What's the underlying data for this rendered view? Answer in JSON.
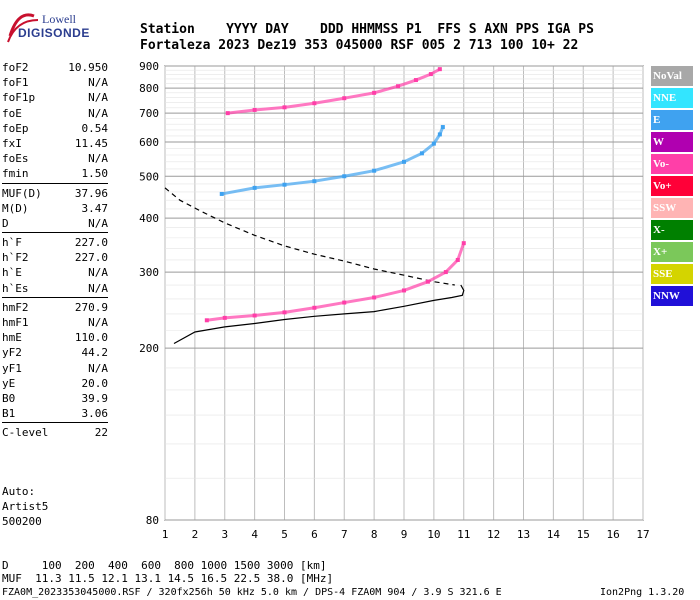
{
  "logo": {
    "line1": "Lowell",
    "line2": "DIGISONDE"
  },
  "header": {
    "row1": "Station    YYYY DAY    DDD HHMMSS P1  FFS S AXN PPS IGA PS",
    "row2": "Fortaleza 2023 Dez19 353 045000 RSF 005 2 713 100 10+ 22"
  },
  "params": {
    "group1": [
      {
        "k": "foF2",
        "v": "10.950"
      },
      {
        "k": "foF1",
        "v": "N/A"
      },
      {
        "k": "foF1p",
        "v": "N/A"
      },
      {
        "k": "foE",
        "v": "N/A"
      },
      {
        "k": "foEp",
        "v": "0.54"
      },
      {
        "k": "fxI",
        "v": "11.45"
      },
      {
        "k": "foEs",
        "v": "N/A"
      },
      {
        "k": "fmin",
        "v": "1.50"
      }
    ],
    "group2": [
      {
        "k": "MUF(D)",
        "v": "37.96"
      },
      {
        "k": "M(D)",
        "v": "3.47"
      },
      {
        "k": "D",
        "v": "N/A"
      }
    ],
    "group3": [
      {
        "k": "h`F",
        "v": "227.0"
      },
      {
        "k": "h`F2",
        "v": "227.0"
      },
      {
        "k": "h`E",
        "v": "N/A"
      },
      {
        "k": "h`Es",
        "v": "N/A"
      }
    ],
    "group4": [
      {
        "k": "hmF2",
        "v": "270.9"
      },
      {
        "k": "hmF1",
        "v": "N/A"
      },
      {
        "k": "hmE",
        "v": "110.0"
      },
      {
        "k": "yF2",
        "v": "44.2"
      },
      {
        "k": "yF1",
        "v": "N/A"
      },
      {
        "k": "yE",
        "v": "20.0"
      },
      {
        "k": "B0",
        "v": "39.9"
      },
      {
        "k": "B1",
        "v": "3.06"
      }
    ],
    "group5": [
      {
        "k": "C-level",
        "v": "22"
      }
    ]
  },
  "auto": {
    "line1": "Auto:",
    "line2": "Artist5",
    "line3": "500200"
  },
  "legend": [
    {
      "label": "NoVal",
      "color": "#a8a8a8"
    },
    {
      "label": "NNE",
      "color": "#33e5ff"
    },
    {
      "label": "E",
      "color": "#3fa2f0"
    },
    {
      "label": "W",
      "color": "#b000b0"
    },
    {
      "label": "Vo-",
      "color": "#ff3fa8"
    },
    {
      "label": "Vo+",
      "color": "#ff0038"
    },
    {
      "label": "SSW",
      "color": "#ffb4b4"
    },
    {
      "label": "X-",
      "color": "#008000"
    },
    {
      "label": "X+",
      "color": "#7bc85a"
    },
    {
      "label": "SSE",
      "color": "#d4d400"
    },
    {
      "label": "NNW",
      "color": "#2010d8"
    }
  ],
  "chart_data": {
    "type": "scatter",
    "title": "",
    "xlabel": "",
    "ylabel": "",
    "xlim": [
      1,
      17
    ],
    "ylim": [
      80,
      900
    ],
    "yscale": "log",
    "x_ticks": [
      "1",
      "2",
      "3",
      "4",
      "5",
      "6",
      "7",
      "8",
      "9",
      "10",
      "11",
      "12",
      "13",
      "14",
      "15",
      "16",
      "17"
    ],
    "y_ticks": [
      "80",
      "200",
      "300",
      "400",
      "500",
      "600",
      "700",
      "800",
      "900"
    ],
    "grid": true,
    "traces": [
      {
        "name": "F-trace-1",
        "color": "#ff3fa8",
        "points": [
          [
            2.4,
            232
          ],
          [
            3,
            235
          ],
          [
            4,
            238
          ],
          [
            5,
            242
          ],
          [
            6,
            248
          ],
          [
            7,
            255
          ],
          [
            8,
            262
          ],
          [
            9,
            272
          ],
          [
            9.8,
            285
          ],
          [
            10.4,
            300
          ],
          [
            10.8,
            320
          ],
          [
            11,
            350
          ]
        ]
      },
      {
        "name": "F-trace-2",
        "color": "#3fa2f0",
        "points": [
          [
            2.9,
            455
          ],
          [
            4,
            470
          ],
          [
            5,
            478
          ],
          [
            6,
            487
          ],
          [
            7,
            500
          ],
          [
            8,
            515
          ],
          [
            9,
            540
          ],
          [
            9.6,
            565
          ],
          [
            10,
            595
          ],
          [
            10.2,
            625
          ],
          [
            10.3,
            650
          ]
        ]
      },
      {
        "name": "F-trace-3",
        "color": "#ff3fa8",
        "points": [
          [
            3.1,
            700
          ],
          [
            4,
            712
          ],
          [
            5,
            722
          ],
          [
            6,
            738
          ],
          [
            7,
            758
          ],
          [
            8,
            780
          ],
          [
            8.8,
            808
          ],
          [
            9.4,
            835
          ],
          [
            9.9,
            862
          ],
          [
            10.2,
            885
          ]
        ]
      }
    ],
    "curves": [
      {
        "name": "profile",
        "style": "solid",
        "points": [
          [
            1.3,
            205
          ],
          [
            2,
            218
          ],
          [
            3,
            224
          ],
          [
            4,
            228
          ],
          [
            5,
            233
          ],
          [
            6,
            237
          ],
          [
            7,
            240
          ],
          [
            8,
            243
          ],
          [
            9,
            250
          ],
          [
            10,
            258
          ],
          [
            10.6,
            262
          ],
          [
            10.95,
            265
          ],
          [
            11,
            272
          ],
          [
            10.9,
            280
          ]
        ]
      },
      {
        "name": "dashed",
        "style": "dashed",
        "points": [
          [
            1,
            470
          ],
          [
            1.5,
            440
          ],
          [
            2.2,
            415
          ],
          [
            3,
            390
          ],
          [
            4,
            365
          ],
          [
            5,
            345
          ],
          [
            6,
            330
          ],
          [
            7,
            318
          ],
          [
            8,
            305
          ],
          [
            9,
            295
          ],
          [
            10,
            285
          ],
          [
            10.7,
            280
          ]
        ]
      }
    ]
  },
  "footer": {
    "row1": "D     100  200  400  600  800 1000 1500 3000 [km]",
    "row2": "MUF  11.3 11.5 12.1 13.1 14.5 16.5 22.5 38.0 [MHz]",
    "row3": "FZA0M_2023353045000.RSF / 320fx256h 50 kHz 5.0 km / DPS-4 FZA0M 904 / 3.9 S 321.6 E",
    "version": "Ion2Png 1.3.20"
  }
}
